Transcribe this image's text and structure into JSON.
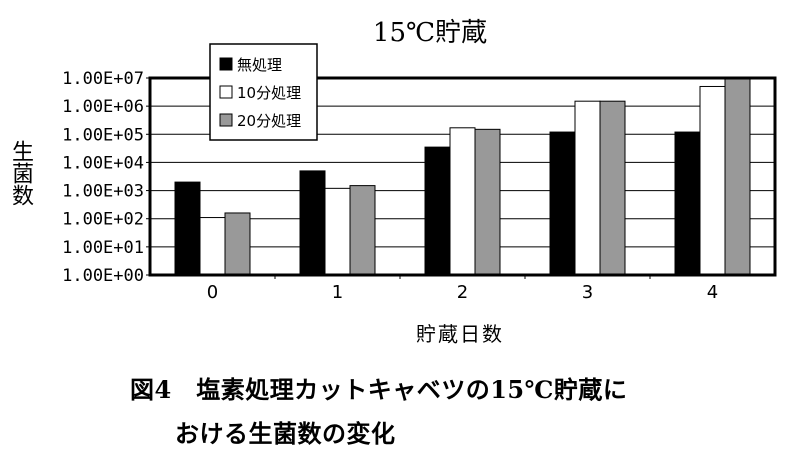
{
  "chart_data": {
    "type": "bar",
    "title": "15℃貯蔵",
    "xlabel": "貯蔵日数",
    "ylabel": "生菌数",
    "y_scale": "log10",
    "ylim": [
      1,
      10000000
    ],
    "y_ticks": [
      "1.00E+00",
      "1.00E+01",
      "1.00E+02",
      "1.00E+03",
      "1.00E+04",
      "1.00E+05",
      "1.00E+06",
      "1.00E+07"
    ],
    "categories": [
      "0",
      "1",
      "2",
      "3",
      "4"
    ],
    "legend_position": "top-left",
    "series": [
      {
        "name": "無処理",
        "color": "#000000",
        "values": [
          2000,
          5000,
          35000,
          120000,
          120000
        ]
      },
      {
        "name": "10分処理",
        "color": "#ffffff",
        "values": [
          110,
          1200,
          170000,
          1500000,
          5000000
        ]
      },
      {
        "name": "20分処理",
        "color": "#999999",
        "values": [
          160,
          1500,
          150000,
          1500000,
          10000000
        ]
      }
    ]
  },
  "caption": {
    "line1": "図4　塩素処理カットキャベツの15℃貯蔵に",
    "line2": "おける生菌数の変化"
  }
}
